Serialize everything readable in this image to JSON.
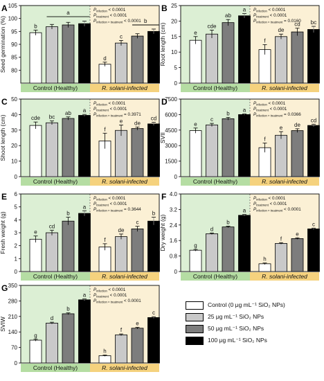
{
  "colors": {
    "control_bg": "#dcefd4",
    "infected_bg": "#fbf0d5",
    "control_band": "#b5dda3",
    "infected_band": "#f5d27e",
    "series": [
      "#ffffff",
      "#c9c9c9",
      "#7d7d7d",
      "#000000"
    ]
  },
  "legend": [
    {
      "label": "Control (0 μg mL⁻¹ SiO₂ NPs)"
    },
    {
      "label": "25 μg mL⁻¹ SiO₂ NPs"
    },
    {
      "label": "50 μg mL⁻¹ SiO₂ NPs"
    },
    {
      "label": "100 μg mL⁻¹ SiO₂ NPs"
    }
  ],
  "chart_data": [
    {
      "panel": "A",
      "type": "bar",
      "ylabel": "Seed germination (%)",
      "ylim": [
        75,
        105
      ],
      "yticks": [
        80,
        85,
        90,
        95,
        100,
        105
      ],
      "groups": [
        "Control (Healthy)",
        "R. solani-infected"
      ],
      "series": [
        {
          "name": "Control (0 μg mL⁻¹ SiO₂ NPs)",
          "values": [
            94.5,
            82.3
          ],
          "errors": [
            1.0,
            0.8
          ],
          "letters": [
            "b",
            "d"
          ]
        },
        {
          "name": "25 μg mL⁻¹ SiO₂ NPs",
          "values": [
            96.8,
            90.5
          ],
          "errors": [
            0.9,
            1.0
          ],
          "letters": [
            "",
            "c"
          ]
        },
        {
          "name": "50 μg mL⁻¹ SiO₂ NPs",
          "values": [
            97.5,
            93.2
          ],
          "errors": [
            1.0,
            0.9
          ],
          "letters": [
            "",
            ""
          ]
        },
        {
          "name": "100 μg mL⁻¹ SiO₂ NPs",
          "values": [
            98.0,
            95.0
          ],
          "errors": [
            1.0,
            0.9
          ],
          "letters": [
            "",
            ""
          ]
        }
      ],
      "brackets": [
        {
          "group": 0,
          "from": 1,
          "to": 3,
          "y": 100.7,
          "letter": "a"
        },
        {
          "group": 1,
          "from": 2,
          "to": 3,
          "y": 97.5,
          "letter": "b"
        }
      ],
      "stats": [
        {
          "label": "infection",
          "value": "< 0.0001"
        },
        {
          "label": "treatment",
          "value": "< 0.0001"
        },
        {
          "label": "infection × treatment",
          "value": "< 0.0001"
        }
      ]
    },
    {
      "panel": "B",
      "type": "bar",
      "ylabel": "Root length (cm)",
      "ylim": [
        0,
        25
      ],
      "yticks": [
        0,
        5,
        10,
        15,
        20,
        25
      ],
      "groups": [
        "Control (Healthy)",
        "R. solani-infected"
      ],
      "series": [
        {
          "name": "Control (0 μg mL⁻¹ SiO₂ NPs)",
          "values": [
            13.8,
            10.8
          ],
          "errors": [
            1.2,
            1.6
          ],
          "letters": [
            "e",
            "f"
          ]
        },
        {
          "name": "25 μg mL⁻¹ SiO₂ NPs",
          "values": [
            15.8,
            15.0
          ],
          "errors": [
            1.3,
            0.8
          ],
          "letters": [
            "cde",
            "de"
          ]
        },
        {
          "name": "50 μg mL⁻¹ SiO₂ NPs",
          "values": [
            19.5,
            16.5
          ],
          "errors": [
            1.0,
            1.2
          ],
          "letters": [
            "ab",
            "cd"
          ]
        },
        {
          "name": "100 μg mL⁻¹ SiO₂ NPs",
          "values": [
            21.7,
            17.3
          ],
          "errors": [
            0.7,
            1.0
          ],
          "letters": [
            "a",
            "bc"
          ]
        }
      ],
      "brackets": [],
      "stats": [
        {
          "label": "infection",
          "value": "< 0.0001"
        },
        {
          "label": "treatment",
          "value": "< 0.0001"
        },
        {
          "label": "infection × treatment",
          "value": "= 0.0160"
        }
      ]
    },
    {
      "panel": "C",
      "type": "bar",
      "ylabel": "Shoot length (cm)",
      "ylim": [
        0,
        50
      ],
      "yticks": [
        0,
        10,
        20,
        30,
        40,
        50
      ],
      "groups": [
        "Control (Healthy)",
        "R. solani-infected"
      ],
      "series": [
        {
          "name": "Control (0 μg mL⁻¹ SiO₂ NPs)",
          "values": [
            33.0,
            23.0
          ],
          "errors": [
            2.2,
            5.0
          ],
          "letters": [
            "cde",
            "f"
          ]
        },
        {
          "name": "25 μg mL⁻¹ SiO₂ NPs",
          "values": [
            34.7,
            29.8
          ],
          "errors": [
            1.2,
            3.5
          ],
          "letters": [
            "bc",
            "e"
          ]
        },
        {
          "name": "50 μg mL⁻¹ SiO₂ NPs",
          "values": [
            37.5,
            31.0
          ],
          "errors": [
            1.0,
            1.0
          ],
          "letters": [
            "ab",
            "de"
          ]
        },
        {
          "name": "100 μg mL⁻¹ SiO₂ NPs",
          "values": [
            39.5,
            34.0
          ],
          "errors": [
            0.6,
            1.0
          ],
          "letters": [
            "a",
            "cd"
          ]
        }
      ],
      "brackets": [],
      "stats": [
        {
          "label": "infection",
          "value": "< 0.0001"
        },
        {
          "label": "treatment",
          "value": "< 0.0001"
        },
        {
          "label": "infection × treatment",
          "value": "= 0.3971"
        }
      ]
    },
    {
      "panel": "D",
      "type": "bar",
      "ylabel": "SVII",
      "ylim": [
        0,
        7500
      ],
      "yticks": [
        0,
        1500,
        3000,
        4500,
        6000,
        7500
      ],
      "groups": [
        "Control (Healthy)",
        "R. solani-infected"
      ],
      "series": [
        {
          "name": "Control (0 μg mL⁻¹ SiO₂ NPs)",
          "values": [
            4450,
            2800
          ],
          "errors": [
            250,
            450
          ],
          "letters": [
            "e",
            "f"
          ]
        },
        {
          "name": "25 μg mL⁻¹ SiO₂ NPs",
          "values": [
            5000,
            4000
          ],
          "errors": [
            150,
            350
          ],
          "letters": [
            "c",
            "e"
          ]
        },
        {
          "name": "50 μg mL⁻¹ SiO₂ NPs",
          "values": [
            5600,
            4450
          ],
          "errors": [
            130,
            180
          ],
          "letters": [
            "b",
            "de"
          ]
        },
        {
          "name": "100 μg mL⁻¹ SiO₂ NPs",
          "values": [
            6000,
            4950
          ],
          "errors": [
            60,
            120
          ],
          "letters": [
            "a",
            "cd"
          ]
        }
      ],
      "brackets": [],
      "stats": [
        {
          "label": "infection",
          "value": "< 0.0001"
        },
        {
          "label": "treatment",
          "value": "< 0.0001"
        },
        {
          "label": "infection × treatment",
          "value": "= 0.0366"
        }
      ]
    },
    {
      "panel": "E",
      "type": "bar",
      "ylabel": "Fresh weight (g)",
      "ylim": [
        0,
        6
      ],
      "yticks": [
        0,
        1,
        2,
        3,
        4,
        5,
        6
      ],
      "groups": [
        "Control (Healthy)",
        "R. solani-infected"
      ],
      "series": [
        {
          "name": "Control (0 μg mL⁻¹ SiO₂ NPs)",
          "values": [
            2.5,
            1.9
          ],
          "errors": [
            0.25,
            0.25
          ],
          "letters": [
            "e",
            "f"
          ]
        },
        {
          "name": "25 μg mL⁻¹ SiO₂ NPs",
          "values": [
            3.0,
            2.7
          ],
          "errors": [
            0.2,
            0.2
          ],
          "letters": [
            "cd",
            "de"
          ]
        },
        {
          "name": "50 μg mL⁻¹ SiO₂ NPs",
          "values": [
            3.9,
            3.3
          ],
          "errors": [
            0.3,
            0.2
          ],
          "letters": [
            "b",
            "c"
          ]
        },
        {
          "name": "100 μg mL⁻¹ SiO₂ NPs",
          "values": [
            4.5,
            3.9
          ],
          "errors": [
            0.2,
            0.3
          ],
          "letters": [
            "a",
            "b"
          ]
        }
      ],
      "brackets": [],
      "stats": [
        {
          "label": "infection",
          "value": "< 0.0001"
        },
        {
          "label": "treatment",
          "value": "< 0.0001"
        },
        {
          "label": "infection × treatment",
          "value": "= 0.3644"
        }
      ]
    },
    {
      "panel": "F",
      "type": "bar",
      "ylabel": "Dry weight (g)",
      "ylim": [
        0,
        4.0
      ],
      "yticks": [
        0,
        0.8,
        1.6,
        2.4,
        3.2,
        4.0
      ],
      "yticklabels": [
        "0",
        "0.8",
        "1.6",
        "2.4",
        "3.2",
        "4.0"
      ],
      "groups": [
        "Control (Healthy)",
        "R. solani-infected"
      ],
      "series": [
        {
          "name": "Control (0 μg mL⁻¹ SiO₂ NPs)",
          "values": [
            1.1,
            0.4
          ],
          "errors": [
            0.04,
            0.04
          ],
          "letters": [
            "g",
            "h"
          ]
        },
        {
          "name": "25 μg mL⁻¹ SiO₂ NPs",
          "values": [
            1.95,
            1.45
          ],
          "errors": [
            0.04,
            0.04
          ],
          "letters": [
            "d",
            "f"
          ]
        },
        {
          "name": "50 μg mL⁻¹ SiO₂ NPs",
          "values": [
            2.3,
            1.7
          ],
          "errors": [
            0.04,
            0.04
          ],
          "letters": [
            "b",
            "e"
          ]
        },
        {
          "name": "100 μg mL⁻¹ SiO₂ NPs",
          "values": [
            2.9,
            2.2
          ],
          "errors": [
            0.04,
            0.04
          ],
          "letters": [
            "a",
            "c"
          ]
        }
      ],
      "brackets": [],
      "stats": [
        {
          "label": "infection",
          "value": "< 0.0001"
        },
        {
          "label": "treatment",
          "value": "< 0.0001"
        },
        {
          "label": "infection × treatment",
          "value": "< 0.0001"
        }
      ]
    },
    {
      "panel": "G",
      "type": "bar",
      "ylabel": "SVIW",
      "ylim": [
        0,
        350
      ],
      "yticks": [
        0,
        70,
        140,
        210,
        280,
        350
      ],
      "groups": [
        "Control (Healthy)",
        "R. solani-infected"
      ],
      "series": [
        {
          "name": "Control (0 μg mL⁻¹ SiO₂ NPs)",
          "values": [
            103,
            33
          ],
          "errors": [
            4,
            3
          ],
          "letters": [
            "g",
            "h"
          ]
        },
        {
          "name": "25 μg mL⁻¹ SiO₂ NPs",
          "values": [
            180,
            127
          ],
          "errors": [
            4,
            4
          ],
          "letters": [
            "d",
            "f"
          ]
        },
        {
          "name": "50 μg mL⁻¹ SiO₂ NPs",
          "values": [
            222,
            157
          ],
          "errors": [
            4,
            4
          ],
          "letters": [
            "b",
            "e"
          ]
        },
        {
          "name": "100 μg mL⁻¹ SiO₂ NPs",
          "values": [
            285,
            205
          ],
          "errors": [
            4,
            4
          ],
          "letters": [
            "a",
            "c"
          ]
        }
      ],
      "brackets": [],
      "stats": [
        {
          "label": "infection",
          "value": "< 0.0001"
        },
        {
          "label": "treatment",
          "value": "< 0.0001"
        },
        {
          "label": "infection × treatment",
          "value": "< 0.0001"
        }
      ]
    }
  ]
}
